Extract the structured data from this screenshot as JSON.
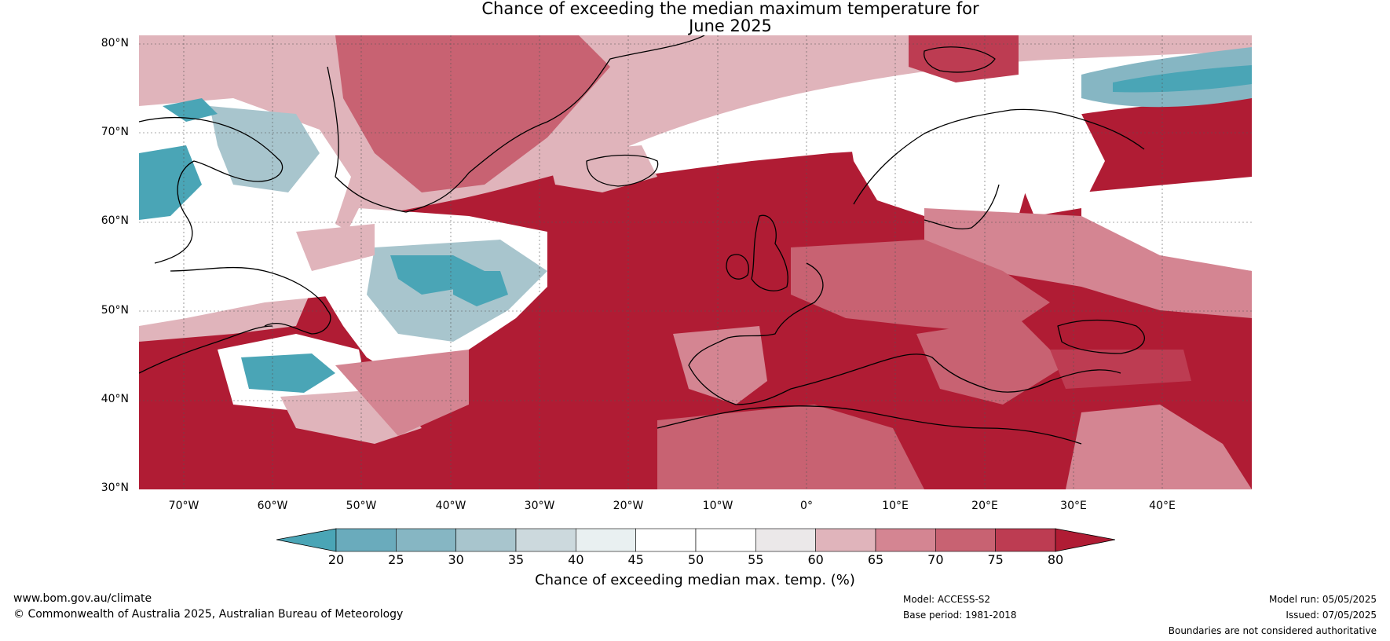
{
  "title_line_1": "Chance of exceeding the median maximum temperature for",
  "title_line_2": "June 2025",
  "lat_labels": [
    "80°N",
    "70°N",
    "60°N",
    "50°N",
    "40°N",
    "30°N"
  ],
  "lon_labels": [
    "70°W",
    "60°W",
    "50°W",
    "40°W",
    "30°W",
    "20°W",
    "10°W",
    "0°",
    "10°E",
    "20°E",
    "30°E",
    "40°E"
  ],
  "colorbar": {
    "ticks": [
      "20",
      "25",
      "30",
      "35",
      "40",
      "45",
      "50",
      "55",
      "60",
      "65",
      "70",
      "75",
      "80"
    ],
    "title": "Chance of exceeding median max. temp. (%)",
    "colors": [
      "#4aa5b6",
      "#6aabbc",
      "#86b6c3",
      "#a8c5cd",
      "#ccd9dd",
      "#e9f0f1",
      "#ffffff",
      "#ffffff",
      "#ebe8e9",
      "#e0b4bb",
      "#d48592",
      "#c86272",
      "#bd3c52",
      "#b01c34"
    ]
  },
  "footer": {
    "website": "www.bom.gov.au/climate",
    "copyright": "© Commonwealth of Australia 2025, Australian Bureau of Meteorology",
    "model": "Model: ACCESS-S2",
    "base_period": "Base period: 1981-2018",
    "model_run": "Model run: 05/05/2025",
    "issued": "Issued: 07/05/2025",
    "disclaimer": "Boundaries are not considered authoritative"
  },
  "map": {
    "extent": {
      "lon_min": -75,
      "lon_max": 50,
      "lat_min": 30,
      "lat_max": 81
    },
    "colors": {
      "deep_red": "#b01c34",
      "red": "#c86272",
      "pink": "#e0b4bb",
      "white": "#ffffff",
      "light_grey": "#ebe8e9",
      "teal": "#4aa5b6",
      "light_teal": "#a8c5cd",
      "coast": "#000000",
      "border": "#808080"
    }
  }
}
